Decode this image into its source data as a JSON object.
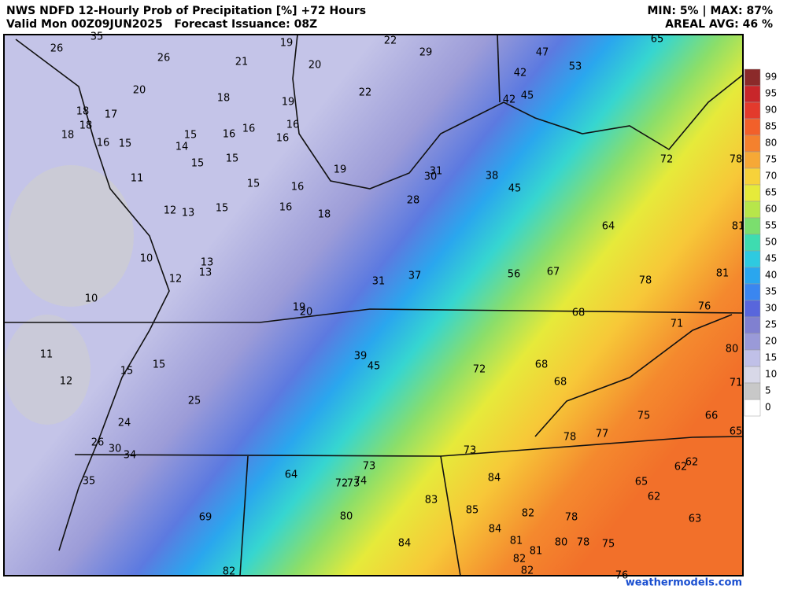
{
  "header": {
    "title": "NWS NDFD 12-Hourly Prob of Precipitation [%] +72 Hours",
    "valid": "Valid Mon 00Z09JUN2025   Forecast Issuance: 08Z",
    "minmax": "MIN: 5% | MAX: 87%",
    "areal": "AREAL AVG: 46 %"
  },
  "legend": [
    {
      "value": 99,
      "color": "#8b2a2a"
    },
    {
      "value": 95,
      "color": "#c8262a"
    },
    {
      "value": 90,
      "color": "#e33a2c"
    },
    {
      "value": 85,
      "color": "#f2602a"
    },
    {
      "value": 80,
      "color": "#f4812e"
    },
    {
      "value": 75,
      "color": "#f6a836"
    },
    {
      "value": 70,
      "color": "#f7d23a"
    },
    {
      "value": 65,
      "color": "#e6ea3a"
    },
    {
      "value": 60,
      "color": "#b7e64a"
    },
    {
      "value": 55,
      "color": "#7bde6e"
    },
    {
      "value": 50,
      "color": "#3edcb0"
    },
    {
      "value": 45,
      "color": "#2ecae0"
    },
    {
      "value": 40,
      "color": "#2aa6ee"
    },
    {
      "value": 35,
      "color": "#3a86f0"
    },
    {
      "value": 30,
      "color": "#5866dc"
    },
    {
      "value": 25,
      "color": "#8080d0"
    },
    {
      "value": 20,
      "color": "#9a9ad8"
    },
    {
      "value": 15,
      "color": "#c0c0e8"
    },
    {
      "value": 10,
      "color": "#d8d8e8"
    },
    {
      "value": 5,
      "color": "#c8c8c8"
    },
    {
      "value": 0,
      "color": "#ffffff"
    }
  ],
  "map_labels": [
    35,
    26,
    26,
    21,
    19,
    22,
    29,
    20,
    65,
    47,
    53,
    42,
    42,
    45,
    20,
    18,
    22,
    19,
    18,
    17,
    18,
    16,
    16,
    18,
    16,
    15,
    15,
    16,
    16,
    14,
    15,
    15,
    19,
    31,
    30,
    38,
    45,
    72,
    78,
    11,
    15,
    16,
    12,
    13,
    15,
    16,
    18,
    28,
    64,
    81,
    10,
    13,
    13,
    12,
    31,
    37,
    56,
    67,
    78,
    81,
    10,
    19,
    20,
    68,
    76,
    71,
    11,
    39,
    45,
    72,
    68,
    80,
    12,
    15,
    15,
    68,
    71,
    25,
    75,
    66,
    24,
    78,
    77,
    65,
    26,
    30,
    34,
    73,
    73,
    64,
    84,
    62,
    62,
    35,
    72,
    73,
    74,
    65,
    62,
    83,
    85,
    82,
    78,
    63,
    69,
    80,
    84,
    81,
    80,
    78,
    75,
    84,
    81,
    82,
    82,
    82,
    76
  ],
  "footer": "weathermodels.com"
}
